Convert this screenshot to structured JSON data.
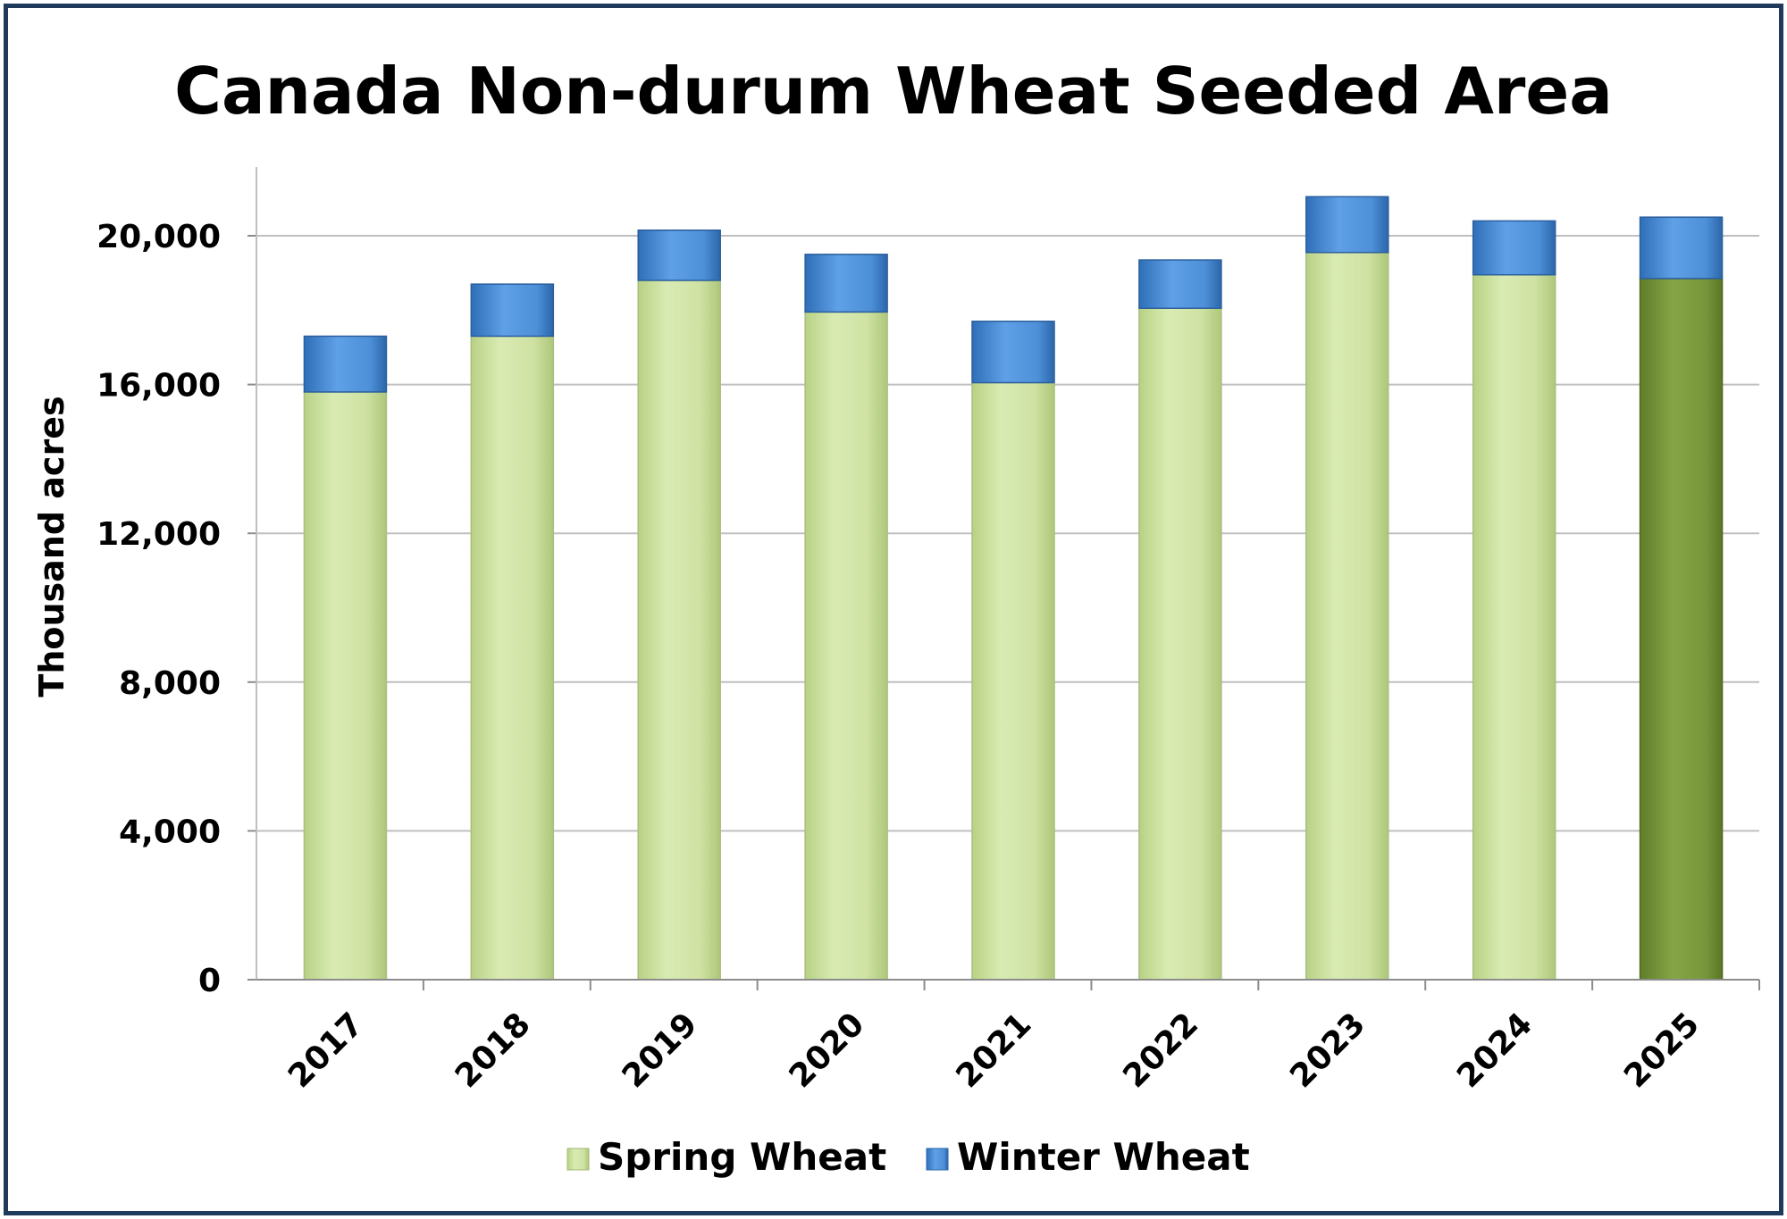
{
  "chart_data": {
    "type": "bar",
    "stacked": true,
    "title": "Canada Non-durum Wheat Seeded Area",
    "ylabel": "Thousand acres",
    "xlabel": "",
    "categories": [
      "2017",
      "2018",
      "2019",
      "2020",
      "2021",
      "2022",
      "2023",
      "2024",
      "2025"
    ],
    "series": [
      {
        "name": "Spring Wheat",
        "values": [
          15800,
          17300,
          18800,
          17950,
          16050,
          18050,
          19550,
          18950,
          18850
        ],
        "color": "#cfe2a3",
        "highlight_last_color": "#77963a"
      },
      {
        "name": "Winter Wheat",
        "values": [
          1500,
          1400,
          1350,
          1550,
          1650,
          1300,
          1500,
          1450,
          1650
        ],
        "color": "#4d90d8"
      }
    ],
    "ylim": [
      0,
      20000
    ],
    "yticks": [
      0,
      4000,
      8000,
      12000,
      16000,
      20000
    ],
    "ytick_labels": [
      "0",
      "4,000",
      "8,000",
      "12,000",
      "16,000",
      "20,000"
    ],
    "grid": true,
    "legend": "bottom"
  }
}
